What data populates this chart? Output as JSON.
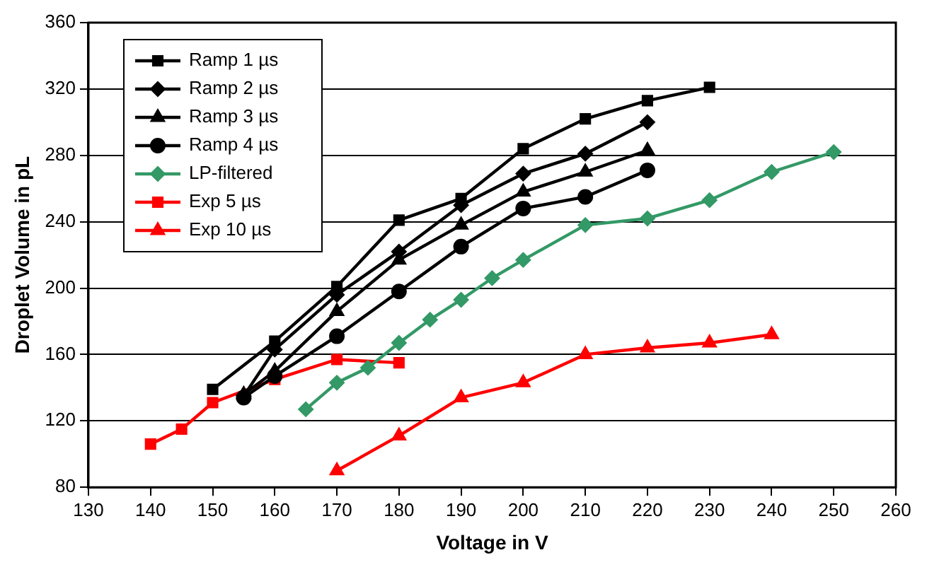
{
  "chart_data": {
    "type": "line",
    "xlabel": "Voltage in V",
    "ylabel": "Droplet Volume in pL",
    "xlim": [
      130,
      260
    ],
    "xticks": [
      130,
      140,
      150,
      160,
      170,
      180,
      190,
      200,
      210,
      220,
      230,
      240,
      250,
      260
    ],
    "ylim": [
      80,
      360
    ],
    "yticks": [
      80,
      120,
      160,
      200,
      240,
      280,
      320,
      360
    ],
    "grid": "y",
    "legend": "top left",
    "line_style": "solid",
    "series": [
      {
        "name": "Ramp 1 µs",
        "color": "#000000",
        "marker": "square",
        "x": [
          150,
          160,
          170,
          180,
          190,
          200,
          210,
          220,
          230
        ],
        "values": [
          139,
          168,
          201,
          241,
          254,
          284,
          302,
          313,
          321
        ]
      },
      {
        "name": "Ramp 2 µs",
        "color": "#000000",
        "marker": "diamond",
        "x": [
          155,
          160,
          170,
          180,
          190,
          200,
          210,
          220
        ],
        "values": [
          135,
          163,
          196,
          222,
          250,
          269,
          281,
          300
        ]
      },
      {
        "name": "Ramp 3 µs",
        "color": "#000000",
        "marker": "triangle",
        "x": [
          155,
          160,
          170,
          180,
          190,
          200,
          210,
          220
        ],
        "values": [
          136,
          150,
          186,
          217,
          238,
          258,
          270,
          283
        ]
      },
      {
        "name": "Ramp 4 µs",
        "color": "#000000",
        "marker": "circle",
        "x": [
          155,
          160,
          170,
          180,
          190,
          200,
          210,
          220
        ],
        "values": [
          134,
          147,
          171,
          198,
          225,
          248,
          255,
          271
        ]
      },
      {
        "name": "LP-filtered",
        "color": "#339966",
        "marker": "diamond",
        "x": [
          165,
          170,
          175,
          180,
          185,
          190,
          195,
          200,
          210,
          220,
          230,
          240,
          250
        ],
        "values": [
          127,
          143,
          152,
          167,
          181,
          193,
          206,
          217,
          238,
          242,
          253,
          270,
          282
        ]
      },
      {
        "name": "Exp 5 µs",
        "color": "#ff0000",
        "marker": "square",
        "x": [
          140,
          145,
          150,
          160,
          170,
          180
        ],
        "values": [
          106,
          115,
          131,
          145,
          157,
          155
        ]
      },
      {
        "name": "Exp 10 µs",
        "color": "#ff0000",
        "marker": "triangle",
        "x": [
          170,
          180,
          190,
          200,
          210,
          220,
          230,
          240
        ],
        "values": [
          90,
          111,
          134,
          143,
          160,
          164,
          167,
          172
        ]
      }
    ]
  }
}
